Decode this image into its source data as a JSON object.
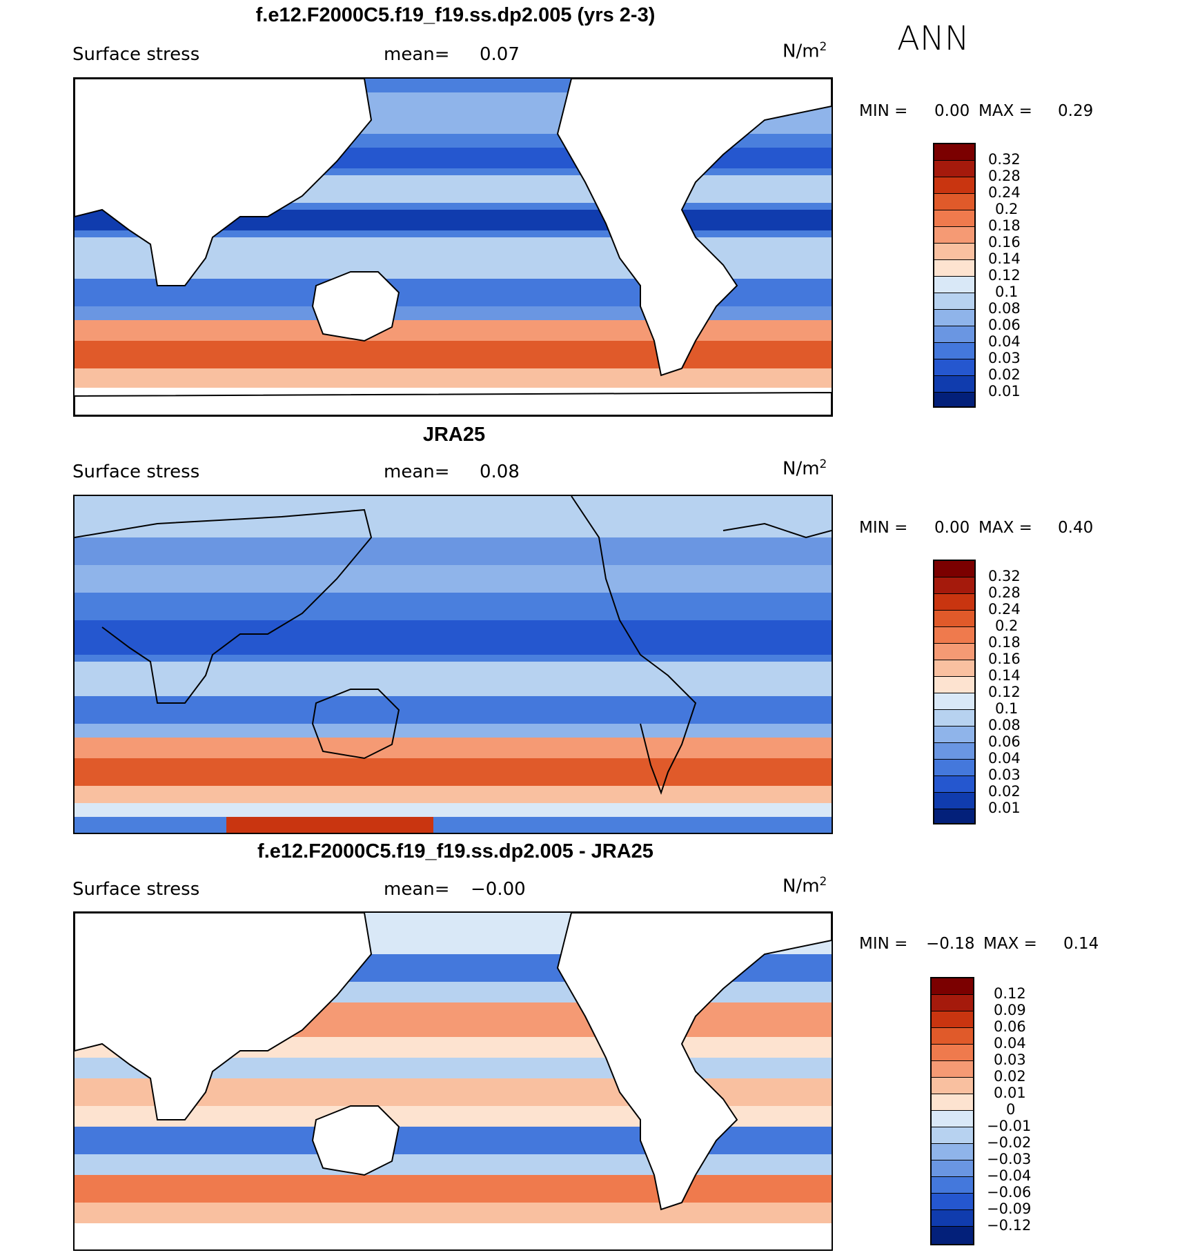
{
  "season": "ANN",
  "panels": [
    {
      "title": "f.e12.F2000C5.f19_f19.ss.dp2.005 (yrs 2-3)",
      "variable": "Surface stress",
      "mean_label": "mean=",
      "mean_value": "0.07",
      "units_base": "N/m",
      "units_exp": "2",
      "min_label": "MIN =",
      "min_value": "0.00",
      "max_label": "MAX =",
      "max_value": "0.29",
      "colorbar_labels": [
        "0.32",
        "0.28",
        "0.24",
        "0.2",
        "0.18",
        "0.16",
        "0.14",
        "0.12",
        "0.1",
        "0.08",
        "0.06",
        "0.04",
        "0.03",
        "0.02",
        "0.01"
      ]
    },
    {
      "title": "JRA25",
      "variable": "Surface stress",
      "mean_label": "mean=",
      "mean_value": "0.08",
      "units_base": "N/m",
      "units_exp": "2",
      "min_label": "MIN =",
      "min_value": "0.00",
      "max_label": "MAX =",
      "max_value": "0.40",
      "colorbar_labels": [
        "0.32",
        "0.28",
        "0.24",
        "0.2",
        "0.18",
        "0.16",
        "0.14",
        "0.12",
        "0.1",
        "0.08",
        "0.06",
        "0.04",
        "0.03",
        "0.02",
        "0.01"
      ]
    },
    {
      "title": "f.e12.F2000C5.f19_f19.ss.dp2.005 - JRA25",
      "variable": "Surface stress",
      "mean_label": "mean=",
      "mean_value": "−0.00",
      "units_base": "N/m",
      "units_exp": "2",
      "min_label": "MIN =",
      "min_value": "−0.18",
      "max_label": "MAX =",
      "max_value": "0.14",
      "colorbar_labels": [
        "0.12",
        "0.09",
        "0.06",
        "0.04",
        "0.03",
        "0.02",
        "0.01",
        "0",
        "−0.01",
        "−0.02",
        "−0.03",
        "−0.04",
        "−0.06",
        "−0.09",
        "−0.12"
      ]
    }
  ],
  "colors": {
    "abs_scale": [
      "#7b0000",
      "#a51a0c",
      "#c93510",
      "#e05a2a",
      "#ef7a4d",
      "#f59a74",
      "#f9c0a0",
      "#fde3d0",
      "#d9e8f7",
      "#b7d2f0",
      "#8fb4ea",
      "#6a96e2",
      "#4478dc",
      "#2557cf",
      "#103cae",
      "#03207a"
    ],
    "diff_scale": [
      "#7b0000",
      "#a51a0c",
      "#c93510",
      "#e05a2a",
      "#ef7a4d",
      "#f59a74",
      "#f9c0a0",
      "#fde3d0",
      "#d9e8f7",
      "#b7d2f0",
      "#8fb4ea",
      "#6a96e2",
      "#4478dc",
      "#2557cf",
      "#103cae",
      "#03207a"
    ],
    "land": "#ffffff",
    "coast": "#000000"
  }
}
